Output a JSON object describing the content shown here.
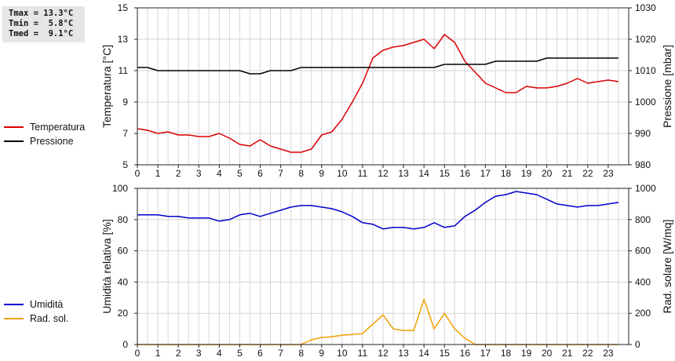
{
  "stats": {
    "tmax": "Tmax = 13.3°C",
    "tmin": "Tmin =  5.8°C",
    "tmed": "Tmed =  9.1°C"
  },
  "chart_data": [
    {
      "type": "line",
      "x_ticks": [
        0,
        1,
        2,
        3,
        4,
        5,
        6,
        7,
        8,
        9,
        10,
        11,
        12,
        13,
        14,
        15,
        16,
        17,
        18,
        19,
        20,
        21,
        22,
        23
      ],
      "xlim": [
        0,
        24
      ],
      "grid": true,
      "legend_placement": "left",
      "ylabel": "Temperatura [°C]",
      "ylim": [
        5,
        15
      ],
      "y_ticks": [
        5,
        7,
        9,
        11,
        13,
        15
      ],
      "y2label": "Pressione [mbar]",
      "y2lim": [
        980,
        1030
      ],
      "y2_ticks": [
        980,
        990,
        1000,
        1010,
        1020,
        1030
      ],
      "series": [
        {
          "name": "Temperatura",
          "axis": "left",
          "color": "#dd0000",
          "x": [
            0,
            0.5,
            1,
            1.5,
            2,
            2.5,
            3,
            3.5,
            4,
            4.5,
            5,
            5.5,
            6,
            6.5,
            7,
            7.5,
            8,
            8.5,
            9,
            9.5,
            10,
            10.5,
            11,
            11.5,
            12,
            12.5,
            13,
            13.5,
            14,
            14.5,
            15,
            15.5,
            16,
            16.5,
            17,
            17.5,
            18,
            18.5,
            19,
            19.5,
            20,
            20.5,
            21,
            21.5,
            22,
            22.5,
            23,
            23.5
          ],
          "y": [
            7.3,
            7.2,
            7.0,
            7.1,
            6.9,
            6.9,
            6.8,
            6.8,
            7.0,
            6.7,
            6.3,
            6.2,
            6.6,
            6.2,
            6.0,
            5.8,
            5.8,
            6.0,
            6.9,
            7.1,
            7.9,
            9.0,
            10.2,
            11.8,
            12.3,
            12.5,
            12.6,
            12.8,
            13.0,
            12.4,
            13.3,
            12.8,
            11.6,
            10.9,
            10.2,
            9.9,
            9.6,
            9.6,
            10.0,
            9.9,
            9.9,
            10.0,
            10.2,
            10.5,
            10.2,
            10.3,
            10.4,
            10.3
          ]
        },
        {
          "name": "Pressione",
          "axis": "right",
          "color": "#000000",
          "x": [
            0,
            0.5,
            1,
            1.5,
            2,
            2.5,
            3,
            3.5,
            4,
            4.5,
            5,
            5.5,
            6,
            6.5,
            7,
            7.5,
            8,
            8.5,
            9,
            9.5,
            10,
            10.5,
            11,
            11.5,
            12,
            12.5,
            13,
            13.5,
            14,
            14.5,
            15,
            15.5,
            16,
            16.5,
            17,
            17.5,
            18,
            18.5,
            19,
            19.5,
            20,
            20.5,
            21,
            21.5,
            22,
            22.5,
            23,
            23.5
          ],
          "y": [
            1011,
            1011,
            1010,
            1010,
            1010,
            1010,
            1010,
            1010,
            1010,
            1010,
            1010,
            1009,
            1009,
            1010,
            1010,
            1010,
            1011,
            1011,
            1011,
            1011,
            1011,
            1011,
            1011,
            1011,
            1011,
            1011,
            1011,
            1011,
            1011,
            1011,
            1012,
            1012,
            1012,
            1012,
            1012,
            1013,
            1013,
            1013,
            1013,
            1013,
            1014,
            1014,
            1014,
            1014,
            1014,
            1014,
            1014,
            1014
          ]
        }
      ]
    },
    {
      "type": "line",
      "x_ticks": [
        0,
        1,
        2,
        3,
        4,
        5,
        6,
        7,
        8,
        9,
        10,
        11,
        12,
        13,
        14,
        15,
        16,
        17,
        18,
        19,
        20,
        21,
        22,
        23
      ],
      "xlim": [
        0,
        24
      ],
      "grid": true,
      "legend_placement": "left",
      "ylabel": "Umidità relativa [%]",
      "ylim": [
        0,
        100
      ],
      "y_ticks": [
        0,
        20,
        40,
        60,
        80,
        100
      ],
      "y2label": "Rad. solare [W/mq]",
      "y2lim": [
        0,
        1000
      ],
      "y2_ticks": [
        0,
        200,
        400,
        600,
        800,
        1000
      ],
      "series": [
        {
          "name": "Umidità",
          "axis": "left",
          "color": "#0000cc",
          "x": [
            0,
            0.5,
            1,
            1.5,
            2,
            2.5,
            3,
            3.5,
            4,
            4.5,
            5,
            5.5,
            6,
            6.5,
            7,
            7.5,
            8,
            8.5,
            9,
            9.5,
            10,
            10.5,
            11,
            11.5,
            12,
            12.5,
            13,
            13.5,
            14,
            14.5,
            15,
            15.5,
            16,
            16.5,
            17,
            17.5,
            18,
            18.5,
            19,
            19.5,
            20,
            20.5,
            21,
            21.5,
            22,
            22.5,
            23,
            23.5
          ],
          "y": [
            83,
            83,
            83,
            82,
            82,
            81,
            81,
            81,
            79,
            80,
            83,
            84,
            82,
            84,
            86,
            88,
            89,
            89,
            88,
            87,
            85,
            82,
            78,
            77,
            74,
            75,
            75,
            74,
            75,
            78,
            75,
            76,
            82,
            86,
            91,
            95,
            96,
            98,
            97,
            96,
            93,
            90,
            89,
            88,
            89,
            89,
            90,
            91
          ]
        },
        {
          "name": "Rad. sol.",
          "axis": "right",
          "color": "#f0a000",
          "x": [
            0,
            0.5,
            1,
            1.5,
            2,
            2.5,
            3,
            3.5,
            4,
            4.5,
            5,
            5.5,
            6,
            6.5,
            7,
            7.5,
            8,
            8.5,
            9,
            9.5,
            10,
            10.5,
            11,
            11.5,
            12,
            12.5,
            13,
            13.5,
            14,
            14.5,
            15,
            15.5,
            16,
            16.5,
            17,
            17.5,
            18,
            18.5,
            19,
            19.5,
            20,
            20.5,
            21,
            21.5,
            22,
            22.5,
            23,
            23.5
          ],
          "y": [
            0,
            0,
            0,
            0,
            0,
            0,
            0,
            0,
            0,
            0,
            0,
            0,
            0,
            0,
            0,
            0,
            0,
            30,
            45,
            50,
            60,
            65,
            70,
            130,
            190,
            100,
            90,
            90,
            290,
            100,
            200,
            100,
            40,
            0,
            0,
            0,
            0,
            0,
            0,
            0,
            0,
            0,
            0,
            0,
            0,
            0,
            0,
            0
          ]
        }
      ]
    }
  ]
}
